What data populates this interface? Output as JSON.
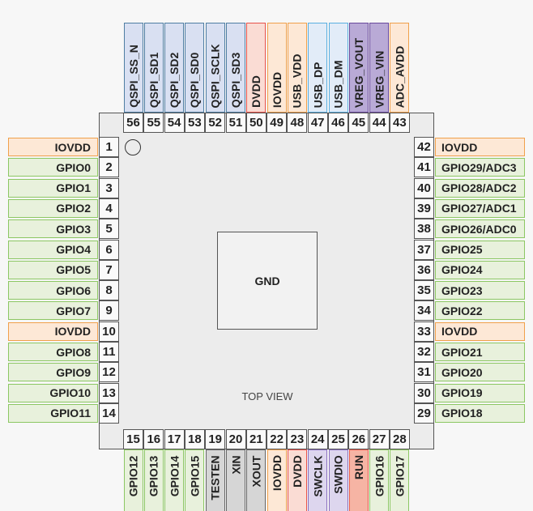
{
  "chip": {
    "center_label": "GND",
    "view_label": "TOP VIEW"
  },
  "types": {
    "gpio": {
      "fill": "#e8f1dc",
      "border": "#8cc763"
    },
    "iovdd": {
      "fill": "#fde8d6",
      "border": "#f0a04b"
    },
    "qspi": {
      "fill": "#d9e0f2",
      "border": "#4f7ea3"
    },
    "dvdd": {
      "fill": "#fadcd4",
      "border": "#e8524a"
    },
    "usb": {
      "fill": "#e2ecf8",
      "border": "#5aafe0"
    },
    "vreg": {
      "fill": "#b9aad6",
      "border": "#6a4a9c"
    },
    "misc": {
      "fill": "#d6d6d6",
      "border": "#666666"
    },
    "swd": {
      "fill": "#ddd6ee",
      "border": "#8a70c0"
    },
    "run": {
      "fill": "#f6b4a4",
      "border": "#e85a4a"
    }
  },
  "left": [
    {
      "n": "1",
      "label": "IOVDD",
      "type": "iovdd"
    },
    {
      "n": "2",
      "label": "GPIO0",
      "type": "gpio"
    },
    {
      "n": "3",
      "label": "GPIO1",
      "type": "gpio"
    },
    {
      "n": "4",
      "label": "GPIO2",
      "type": "gpio"
    },
    {
      "n": "5",
      "label": "GPIO3",
      "type": "gpio"
    },
    {
      "n": "6",
      "label": "GPIO4",
      "type": "gpio"
    },
    {
      "n": "7",
      "label": "GPIO5",
      "type": "gpio"
    },
    {
      "n": "8",
      "label": "GPIO6",
      "type": "gpio"
    },
    {
      "n": "9",
      "label": "GPIO7",
      "type": "gpio"
    },
    {
      "n": "10",
      "label": "IOVDD",
      "type": "iovdd"
    },
    {
      "n": "11",
      "label": "GPIO8",
      "type": "gpio"
    },
    {
      "n": "12",
      "label": "GPIO9",
      "type": "gpio"
    },
    {
      "n": "13",
      "label": "GPIO10",
      "type": "gpio"
    },
    {
      "n": "14",
      "label": "GPIO11",
      "type": "gpio"
    }
  ],
  "bottom": [
    {
      "n": "15",
      "label": "GPIO12",
      "type": "gpio"
    },
    {
      "n": "16",
      "label": "GPIO13",
      "type": "gpio"
    },
    {
      "n": "17",
      "label": "GPIO14",
      "type": "gpio"
    },
    {
      "n": "18",
      "label": "GPIO15",
      "type": "gpio"
    },
    {
      "n": "19",
      "label": "TESTEN",
      "type": "misc"
    },
    {
      "n": "20",
      "label": "XIN",
      "type": "misc"
    },
    {
      "n": "21",
      "label": "XOUT",
      "type": "misc"
    },
    {
      "n": "22",
      "label": "IOVDD",
      "type": "iovdd"
    },
    {
      "n": "23",
      "label": "DVDD",
      "type": "dvdd"
    },
    {
      "n": "24",
      "label": "SWCLK",
      "type": "swd"
    },
    {
      "n": "25",
      "label": "SWDIO",
      "type": "swd"
    },
    {
      "n": "26",
      "label": "RUN",
      "type": "run"
    },
    {
      "n": "27",
      "label": "GPIO16",
      "type": "gpio"
    },
    {
      "n": "28",
      "label": "GPIO17",
      "type": "gpio"
    }
  ],
  "right": [
    {
      "n": "29",
      "label": "GPIO18",
      "type": "gpio"
    },
    {
      "n": "30",
      "label": "GPIO19",
      "type": "gpio"
    },
    {
      "n": "31",
      "label": "GPIO20",
      "type": "gpio"
    },
    {
      "n": "32",
      "label": "GPIO21",
      "type": "gpio"
    },
    {
      "n": "33",
      "label": "IOVDD",
      "type": "iovdd"
    },
    {
      "n": "34",
      "label": "GPIO22",
      "type": "gpio"
    },
    {
      "n": "35",
      "label": "GPIO23",
      "type": "gpio"
    },
    {
      "n": "36",
      "label": "GPIO24",
      "type": "gpio"
    },
    {
      "n": "37",
      "label": "GPIO25",
      "type": "gpio"
    },
    {
      "n": "38",
      "label": "GPIO26/ADC0",
      "type": "gpio"
    },
    {
      "n": "39",
      "label": "GPIO27/ADC1",
      "type": "gpio"
    },
    {
      "n": "40",
      "label": "GPIO28/ADC2",
      "type": "gpio"
    },
    {
      "n": "41",
      "label": "GPIO29/ADC3",
      "type": "gpio"
    },
    {
      "n": "42",
      "label": "IOVDD",
      "type": "iovdd"
    }
  ],
  "top": [
    {
      "n": "43",
      "label": "ADC_AVDD",
      "type": "iovdd"
    },
    {
      "n": "44",
      "label": "VREG_VIN",
      "type": "vreg"
    },
    {
      "n": "45",
      "label": "VREG_VOUT",
      "type": "vreg"
    },
    {
      "n": "46",
      "label": "USB_DM",
      "type": "usb"
    },
    {
      "n": "47",
      "label": "USB_DP",
      "type": "usb"
    },
    {
      "n": "48",
      "label": "USB_VDD",
      "type": "iovdd"
    },
    {
      "n": "49",
      "label": "IOVDD",
      "type": "iovdd"
    },
    {
      "n": "50",
      "label": "DVDD",
      "type": "dvdd"
    },
    {
      "n": "51",
      "label": "QSPI_SD3",
      "type": "qspi"
    },
    {
      "n": "52",
      "label": "QSPI_SCLK",
      "type": "qspi"
    },
    {
      "n": "53",
      "label": "QSPI_SD0",
      "type": "qspi"
    },
    {
      "n": "54",
      "label": "QSPI_SD2",
      "type": "qspi"
    },
    {
      "n": "55",
      "label": "QSPI_SD1",
      "type": "qspi"
    },
    {
      "n": "56",
      "label": "QSPI_SS_N",
      "type": "qspi"
    }
  ]
}
